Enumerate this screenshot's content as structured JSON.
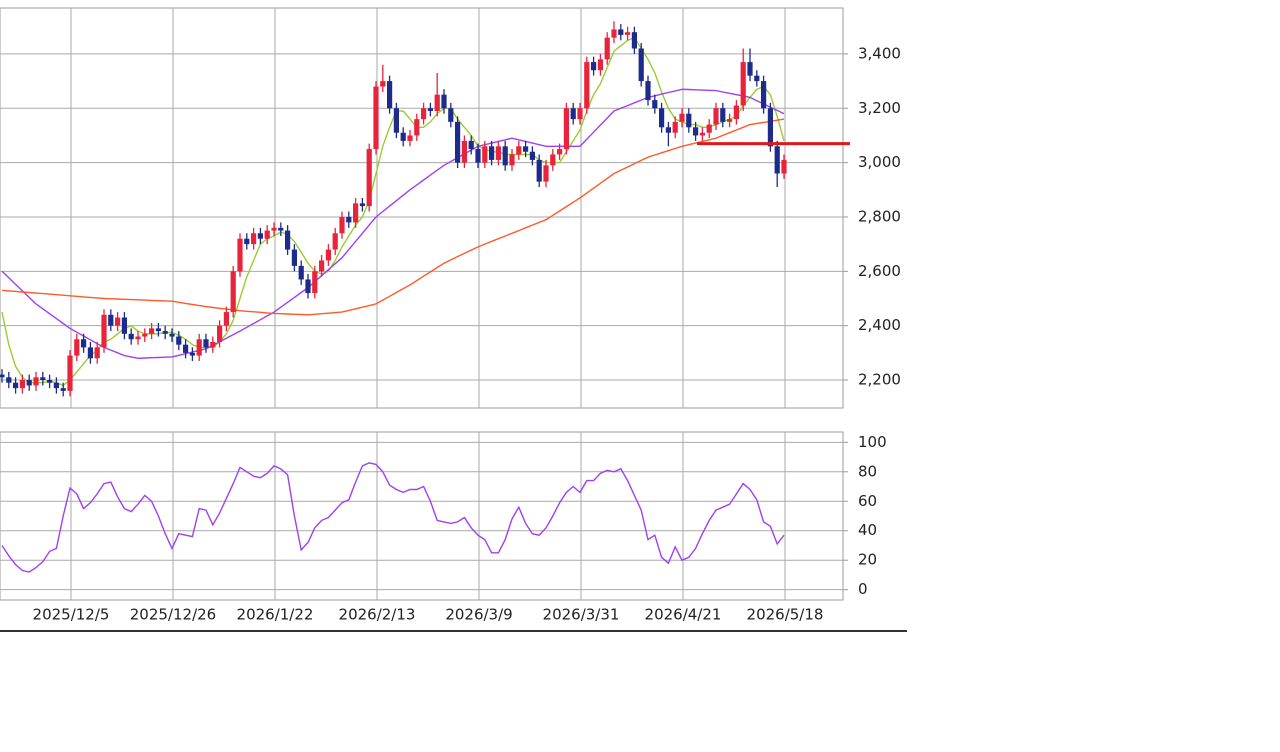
{
  "chart_data": {
    "type": "candlestick",
    "categories": [
      null,
      null,
      null,
      null,
      null,
      null,
      null,
      null,
      null,
      null,
      "2025/12/5",
      null,
      null,
      null,
      null,
      null,
      null,
      null,
      null,
      null,
      null,
      null,
      null,
      null,
      null,
      "2025/12/26",
      null,
      null,
      null,
      null,
      null,
      null,
      null,
      null,
      null,
      null,
      null,
      null,
      null,
      null,
      "2026/1/22",
      null,
      null,
      null,
      null,
      null,
      null,
      null,
      null,
      null,
      null,
      null,
      null,
      null,
      null,
      "2026/2/13",
      null,
      null,
      null,
      null,
      null,
      null,
      null,
      null,
      null,
      null,
      null,
      null,
      null,
      null,
      "2026/3/9",
      null,
      null,
      null,
      null,
      null,
      null,
      null,
      null,
      null,
      null,
      null,
      null,
      null,
      null,
      "2026/3/31",
      null,
      null,
      null,
      null,
      null,
      null,
      null,
      null,
      null,
      null,
      null,
      null,
      null,
      null,
      "2026/4/21",
      null,
      null,
      null,
      null,
      null,
      null,
      null,
      null,
      null,
      null,
      null,
      null,
      null,
      null,
      "2026/5/18"
    ],
    "ohlc": [
      [
        2220,
        2240,
        2190,
        2210
      ],
      [
        2210,
        2230,
        2170,
        2190
      ],
      [
        2190,
        2210,
        2150,
        2170
      ],
      [
        2170,
        2220,
        2150,
        2200
      ],
      [
        2200,
        2220,
        2160,
        2180
      ],
      [
        2180,
        2230,
        2160,
        2210
      ],
      [
        2210,
        2230,
        2180,
        2200
      ],
      [
        2200,
        2220,
        2170,
        2190
      ],
      [
        2190,
        2210,
        2150,
        2170
      ],
      [
        2170,
        2190,
        2140,
        2160
      ],
      [
        2160,
        2310,
        2140,
        2290
      ],
      [
        2290,
        2370,
        2270,
        2350
      ],
      [
        2350,
        2370,
        2300,
        2320
      ],
      [
        2320,
        2340,
        2260,
        2280
      ],
      [
        2280,
        2340,
        2260,
        2320
      ],
      [
        2320,
        2460,
        2300,
        2440
      ],
      [
        2440,
        2460,
        2380,
        2400
      ],
      [
        2400,
        2450,
        2380,
        2430
      ],
      [
        2430,
        2450,
        2350,
        2370
      ],
      [
        2370,
        2390,
        2330,
        2350
      ],
      [
        2350,
        2380,
        2330,
        2360
      ],
      [
        2360,
        2390,
        2340,
        2370
      ],
      [
        2370,
        2410,
        2350,
        2390
      ],
      [
        2390,
        2410,
        2360,
        2380
      ],
      [
        2380,
        2400,
        2350,
        2370
      ],
      [
        2370,
        2390,
        2340,
        2360
      ],
      [
        2360,
        2380,
        2310,
        2330
      ],
      [
        2330,
        2350,
        2280,
        2300
      ],
      [
        2300,
        2320,
        2270,
        2290
      ],
      [
        2290,
        2370,
        2270,
        2350
      ],
      [
        2350,
        2370,
        2300,
        2320
      ],
      [
        2320,
        2360,
        2300,
        2340
      ],
      [
        2340,
        2420,
        2320,
        2400
      ],
      [
        2400,
        2470,
        2380,
        2450
      ],
      [
        2450,
        2620,
        2430,
        2600
      ],
      [
        2600,
        2740,
        2580,
        2720
      ],
      [
        2720,
        2740,
        2680,
        2700
      ],
      [
        2700,
        2760,
        2680,
        2740
      ],
      [
        2740,
        2760,
        2700,
        2720
      ],
      [
        2720,
        2770,
        2700,
        2750
      ],
      [
        2750,
        2780,
        2730,
        2760
      ],
      [
        2760,
        2780,
        2730,
        2750
      ],
      [
        2750,
        2770,
        2660,
        2680
      ],
      [
        2680,
        2700,
        2600,
        2620
      ],
      [
        2620,
        2640,
        2550,
        2570
      ],
      [
        2570,
        2590,
        2500,
        2520
      ],
      [
        2520,
        2620,
        2500,
        2600
      ],
      [
        2600,
        2660,
        2580,
        2640
      ],
      [
        2640,
        2700,
        2620,
        2680
      ],
      [
        2680,
        2760,
        2660,
        2740
      ],
      [
        2740,
        2820,
        2720,
        2800
      ],
      [
        2800,
        2820,
        2760,
        2780
      ],
      [
        2780,
        2870,
        2760,
        2850
      ],
      [
        2850,
        2870,
        2820,
        2840
      ],
      [
        2840,
        3070,
        2820,
        3050
      ],
      [
        3050,
        3300,
        3030,
        3280
      ],
      [
        3280,
        3360,
        3260,
        3300
      ],
      [
        3300,
        3320,
        3180,
        3200
      ],
      [
        3200,
        3220,
        3090,
        3110
      ],
      [
        3110,
        3130,
        3060,
        3080
      ],
      [
        3080,
        3120,
        3060,
        3100
      ],
      [
        3100,
        3180,
        3080,
        3160
      ],
      [
        3160,
        3220,
        3140,
        3200
      ],
      [
        3200,
        3220,
        3170,
        3190
      ],
      [
        3190,
        3330,
        3170,
        3250
      ],
      [
        3250,
        3270,
        3180,
        3200
      ],
      [
        3200,
        3220,
        3130,
        3150
      ],
      [
        3150,
        3170,
        2980,
        3000
      ],
      [
        3000,
        3100,
        2980,
        3080
      ],
      [
        3080,
        3100,
        3030,
        3050
      ],
      [
        3050,
        3070,
        2980,
        3000
      ],
      [
        3000,
        3080,
        2980,
        3060
      ],
      [
        3060,
        3080,
        2990,
        3010
      ],
      [
        3010,
        3080,
        2990,
        3060
      ],
      [
        3060,
        3080,
        2970,
        2990
      ],
      [
        2990,
        3050,
        2970,
        3030
      ],
      [
        3030,
        3080,
        3010,
        3060
      ],
      [
        3060,
        3080,
        3020,
        3040
      ],
      [
        3040,
        3060,
        2990,
        3010
      ],
      [
        3010,
        3030,
        2910,
        2930
      ],
      [
        2930,
        3010,
        2910,
        2990
      ],
      [
        2990,
        3050,
        2970,
        3030
      ],
      [
        3030,
        3070,
        3010,
        3050
      ],
      [
        3050,
        3220,
        3030,
        3200
      ],
      [
        3200,
        3220,
        3140,
        3160
      ],
      [
        3160,
        3220,
        3140,
        3200
      ],
      [
        3200,
        3390,
        3180,
        3370
      ],
      [
        3370,
        3390,
        3320,
        3340
      ],
      [
        3340,
        3400,
        3320,
        3380
      ],
      [
        3380,
        3480,
        3360,
        3460
      ],
      [
        3460,
        3520,
        3440,
        3490
      ],
      [
        3490,
        3510,
        3450,
        3470
      ],
      [
        3470,
        3500,
        3450,
        3480
      ],
      [
        3480,
        3500,
        3400,
        3420
      ],
      [
        3420,
        3440,
        3280,
        3300
      ],
      [
        3300,
        3320,
        3210,
        3230
      ],
      [
        3230,
        3250,
        3180,
        3200
      ],
      [
        3200,
        3220,
        3110,
        3130
      ],
      [
        3130,
        3150,
        3060,
        3110
      ],
      [
        3110,
        3170,
        3090,
        3150
      ],
      [
        3150,
        3200,
        3130,
        3180
      ],
      [
        3180,
        3200,
        3110,
        3130
      ],
      [
        3130,
        3150,
        3080,
        3100
      ],
      [
        3100,
        3130,
        3080,
        3110
      ],
      [
        3110,
        3160,
        3090,
        3140
      ],
      [
        3140,
        3220,
        3120,
        3200
      ],
      [
        3200,
        3220,
        3130,
        3150
      ],
      [
        3150,
        3180,
        3130,
        3160
      ],
      [
        3160,
        3230,
        3140,
        3210
      ],
      [
        3210,
        3420,
        3190,
        3370
      ],
      [
        3370,
        3420,
        3300,
        3320
      ],
      [
        3320,
        3340,
        3280,
        3300
      ],
      [
        3300,
        3320,
        3180,
        3200
      ],
      [
        3200,
        3220,
        3040,
        3060
      ],
      [
        3060,
        3080,
        2910,
        2960
      ],
      [
        2960,
        3030,
        2940,
        3010
      ]
    ],
    "up_color": "#e8243c",
    "down_color": "#1c2b8c",
    "lines": [
      {
        "color": "#9acd32",
        "values": [
          2450,
          2330,
          2250,
          2210,
          2190,
          2190,
          2190,
          2195,
          2190,
          2180,
          2200,
          2230,
          2260,
          2290,
          2310,
          2340,
          2350,
          2370,
          2390,
          2400,
          2380,
          2370,
          2370,
          2370,
          2375,
          2375,
          2365,
          2350,
          2330,
          2320,
          2320,
          2320,
          2340,
          2370,
          2420,
          2500,
          2580,
          2640,
          2700,
          2720,
          2730,
          2745,
          2735,
          2710,
          2670,
          2630,
          2600,
          2590,
          2600,
          2640,
          2690,
          2730,
          2770,
          2800,
          2860,
          2960,
          3060,
          3130,
          3190,
          3190,
          3160,
          3130,
          3130,
          3150,
          3180,
          3200,
          3200,
          3160,
          3130,
          3100,
          3060,
          3050,
          3040,
          3040,
          3030,
          3030,
          3030,
          3030,
          3030,
          3010,
          3000,
          3000,
          3000,
          3040,
          3080,
          3120,
          3190,
          3250,
          3290,
          3350,
          3410,
          3430,
          3450,
          3460,
          3420,
          3380,
          3330,
          3260,
          3200,
          3160,
          3150,
          3140,
          3140,
          3130,
          3130,
          3140,
          3150,
          3160,
          3170,
          3210,
          3240,
          3270,
          3280,
          3250,
          3170,
          3080
        ]
      },
      {
        "color": "#a040f0",
        "values": [
          2600,
          2576,
          2552,
          2528,
          2504,
          2480,
          2462,
          2444,
          2426,
          2408,
          2390,
          2376,
          2362,
          2348,
          2334,
          2320,
          2310,
          2300,
          2290,
          2285,
          2280,
          2281,
          2282,
          2283,
          2284,
          2285,
          2291,
          2297,
          2303,
          2309,
          2315,
          2328,
          2341,
          2354,
          2367,
          2380,
          2394,
          2408,
          2422,
          2436,
          2450,
          2468,
          2486,
          2504,
          2522,
          2540,
          2562,
          2584,
          2606,
          2628,
          2650,
          2680,
          2710,
          2740,
          2770,
          2800,
          2820,
          2840,
          2860,
          2880,
          2900,
          2918,
          2936,
          2954,
          2972,
          2990,
          3004,
          3018,
          3032,
          3046,
          3060,
          3066,
          3072,
          3078,
          3084,
          3090,
          3084,
          3078,
          3072,
          3066,
          3060,
          3060,
          3060,
          3060,
          3060,
          3060,
          3086,
          3112,
          3138,
          3164,
          3190,
          3200,
          3210,
          3220,
          3230,
          3240,
          3246,
          3252,
          3258,
          3264,
          3270,
          3269,
          3268,
          3267,
          3266,
          3265,
          3260,
          3255,
          3250,
          3245,
          3240,
          3228,
          3216,
          3204,
          3192,
          3180
        ]
      },
      {
        "color": "#ff5a28",
        "values": [
          2530,
          2528,
          2526,
          2524,
          2522,
          2520,
          2518,
          2516,
          2514,
          2512,
          2510,
          2508,
          2506,
          2504,
          2502,
          2500,
          2499,
          2498,
          2497,
          2496,
          2495,
          2494,
          2493,
          2492,
          2491,
          2490,
          2486,
          2482,
          2478,
          2474,
          2470,
          2467,
          2464,
          2461,
          2458,
          2455,
          2453,
          2451,
          2449,
          2447,
          2445,
          2444,
          2443,
          2442,
          2441,
          2440,
          2442,
          2444,
          2446,
          2448,
          2450,
          2456,
          2462,
          2468,
          2474,
          2480,
          2494,
          2508,
          2522,
          2536,
          2550,
          2566,
          2582,
          2598,
          2614,
          2630,
          2642,
          2654,
          2666,
          2678,
          2690,
          2700,
          2710,
          2720,
          2730,
          2740,
          2750,
          2760,
          2770,
          2780,
          2790,
          2806,
          2822,
          2838,
          2854,
          2870,
          2888,
          2906,
          2924,
          2942,
          2960,
          2972,
          2984,
          2996,
          3008,
          3020,
          3028,
          3036,
          3044,
          3052,
          3060,
          3066,
          3072,
          3078,
          3084,
          3090,
          3100,
          3110,
          3120,
          3130,
          3140,
          3144,
          3148,
          3152,
          3156,
          3160
        ]
      }
    ],
    "ylim": [
      2097,
      3569
    ],
    "yticks": [
      {
        "value": 2200,
        "label": "2,200"
      },
      {
        "value": 2400,
        "label": "2,400"
      },
      {
        "value": 2600,
        "label": "2,600"
      },
      {
        "value": 2800,
        "label": "2,800"
      },
      {
        "value": 3000,
        "label": "3,000"
      },
      {
        "value": 3200,
        "label": "3,200"
      },
      {
        "value": 3400,
        "label": "3,400"
      }
    ],
    "grid": true,
    "hline": {
      "value": 3070,
      "color": "#e0181e"
    },
    "indicator": {
      "type": "line",
      "color": "#a040f0",
      "values": [
        30,
        23,
        17,
        13,
        12,
        15,
        19,
        26,
        28,
        50,
        69,
        65,
        55,
        59,
        65,
        72,
        73,
        63,
        55,
        53,
        58,
        64,
        60,
        50,
        38,
        28,
        38,
        37,
        36,
        55,
        54,
        44,
        52,
        62,
        72,
        83,
        80,
        77,
        76,
        79,
        84,
        82,
        78,
        50,
        27,
        32,
        42,
        47,
        49,
        54,
        59,
        61,
        73,
        84,
        86,
        85,
        80,
        71,
        68,
        66,
        68,
        68,
        70,
        60,
        47,
        46,
        45,
        46,
        49,
        42,
        37,
        34,
        25,
        25,
        34,
        48,
        56,
        45,
        38,
        37,
        42,
        50,
        59,
        66,
        70,
        66,
        74,
        74,
        79,
        81,
        80,
        82,
        74,
        64,
        54,
        34,
        37,
        22,
        18,
        29,
        20,
        22,
        28,
        38,
        47,
        54,
        56,
        58,
        65,
        72,
        68,
        61,
        46,
        43,
        31,
        37
      ],
      "ylim": [
        -7,
        107
      ],
      "yticks": [
        0,
        20,
        40,
        60,
        80,
        100
      ]
    }
  }
}
